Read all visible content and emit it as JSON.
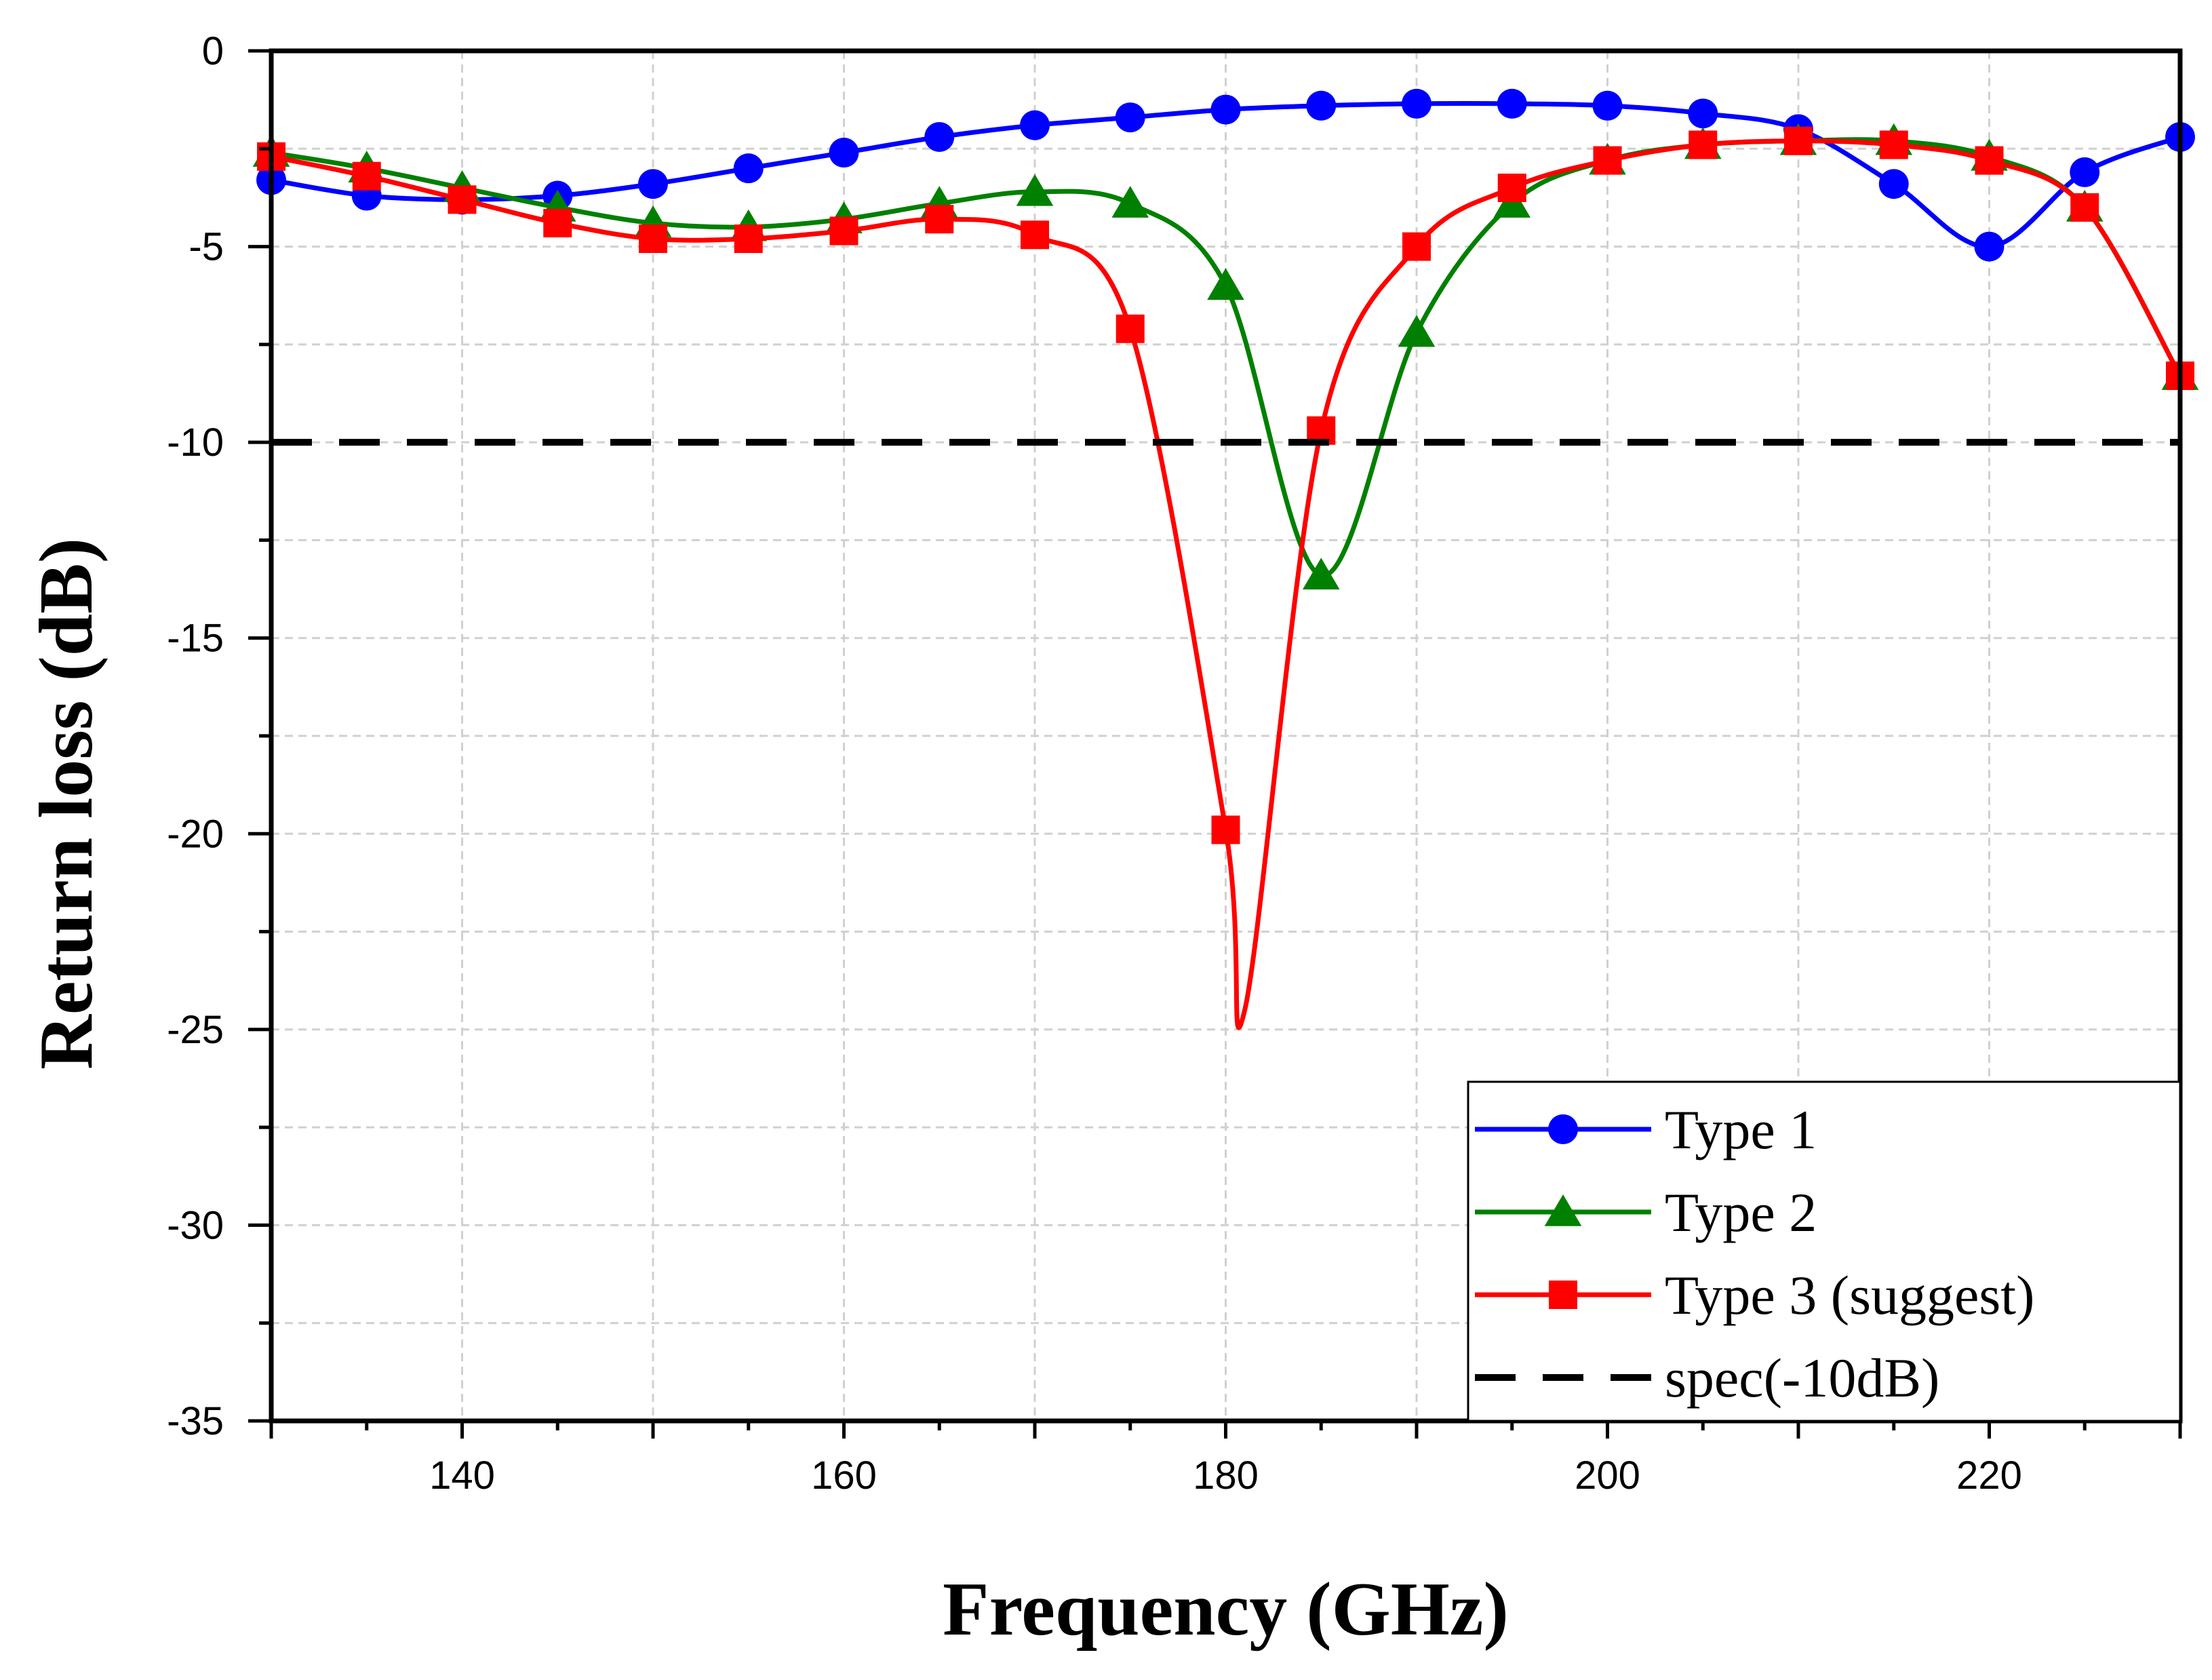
{
  "chart_data": {
    "type": "line",
    "title": "",
    "xlabel": "Frequency (GHz)",
    "ylabel": "Return loss (dB)",
    "xlim": [
      130,
      230
    ],
    "ylim": [
      -35,
      0
    ],
    "xticks": [
      140,
      160,
      180,
      200,
      220
    ],
    "yticks": [
      0,
      -5,
      -10,
      -15,
      -20,
      -25,
      -30,
      -35
    ],
    "grid": true,
    "legend_position": "bottom-right",
    "series": [
      {
        "name": "Type 1",
        "color": "#0000ff",
        "marker": "circle",
        "x": [
          130,
          135,
          140,
          145,
          150,
          155,
          160,
          165,
          170,
          175,
          180,
          185,
          190,
          195,
          200,
          205,
          210,
          215,
          220,
          225,
          230
        ],
        "values": [
          -3.3,
          -3.7,
          -3.8,
          -3.7,
          -3.4,
          -3.0,
          -2.6,
          -2.2,
          -1.9,
          -1.7,
          -1.5,
          -1.4,
          -1.35,
          -1.35,
          -1.4,
          -1.6,
          -2.0,
          -3.4,
          -5.0,
          -3.1,
          -2.2
        ]
      },
      {
        "name": "Type 2",
        "color": "#008000",
        "marker": "triangle",
        "x": [
          130,
          135,
          140,
          145,
          150,
          155,
          160,
          165,
          170,
          175,
          180,
          185,
          190,
          195,
          200,
          205,
          210,
          215,
          220,
          225,
          230
        ],
        "values": [
          -2.6,
          -3.0,
          -3.5,
          -4.0,
          -4.4,
          -4.5,
          -4.3,
          -3.9,
          -3.6,
          -3.9,
          -6.0,
          -13.4,
          -7.2,
          -3.9,
          -2.8,
          -2.4,
          -2.3,
          -2.3,
          -2.7,
          -4.0,
          -8.3
        ]
      },
      {
        "name": "Type 3 (suggest)",
        "color": "#ff0000",
        "marker": "square",
        "x": [
          130,
          135,
          140,
          145,
          150,
          155,
          160,
          165,
          170,
          175,
          180,
          181,
          185,
          190,
          195,
          200,
          205,
          210,
          215,
          220,
          225,
          230
        ],
        "values": [
          -2.7,
          -3.2,
          -3.8,
          -4.4,
          -4.8,
          -4.8,
          -4.6,
          -4.3,
          -4.7,
          -7.1,
          -19.9,
          -24.5,
          -9.7,
          -5.0,
          -3.5,
          -2.8,
          -2.4,
          -2.3,
          -2.4,
          -2.8,
          -4.0,
          -8.3
        ],
        "marker_x": [
          130,
          135,
          140,
          145,
          150,
          155,
          160,
          165,
          170,
          175,
          180,
          185,
          190,
          195,
          200,
          205,
          210,
          215,
          220,
          225,
          230
        ]
      },
      {
        "name": "spec(-10dB)",
        "color": "#000000",
        "marker": "none",
        "dashed": true,
        "x": [
          130,
          230
        ],
        "values": [
          -10,
          -10
        ]
      }
    ]
  }
}
